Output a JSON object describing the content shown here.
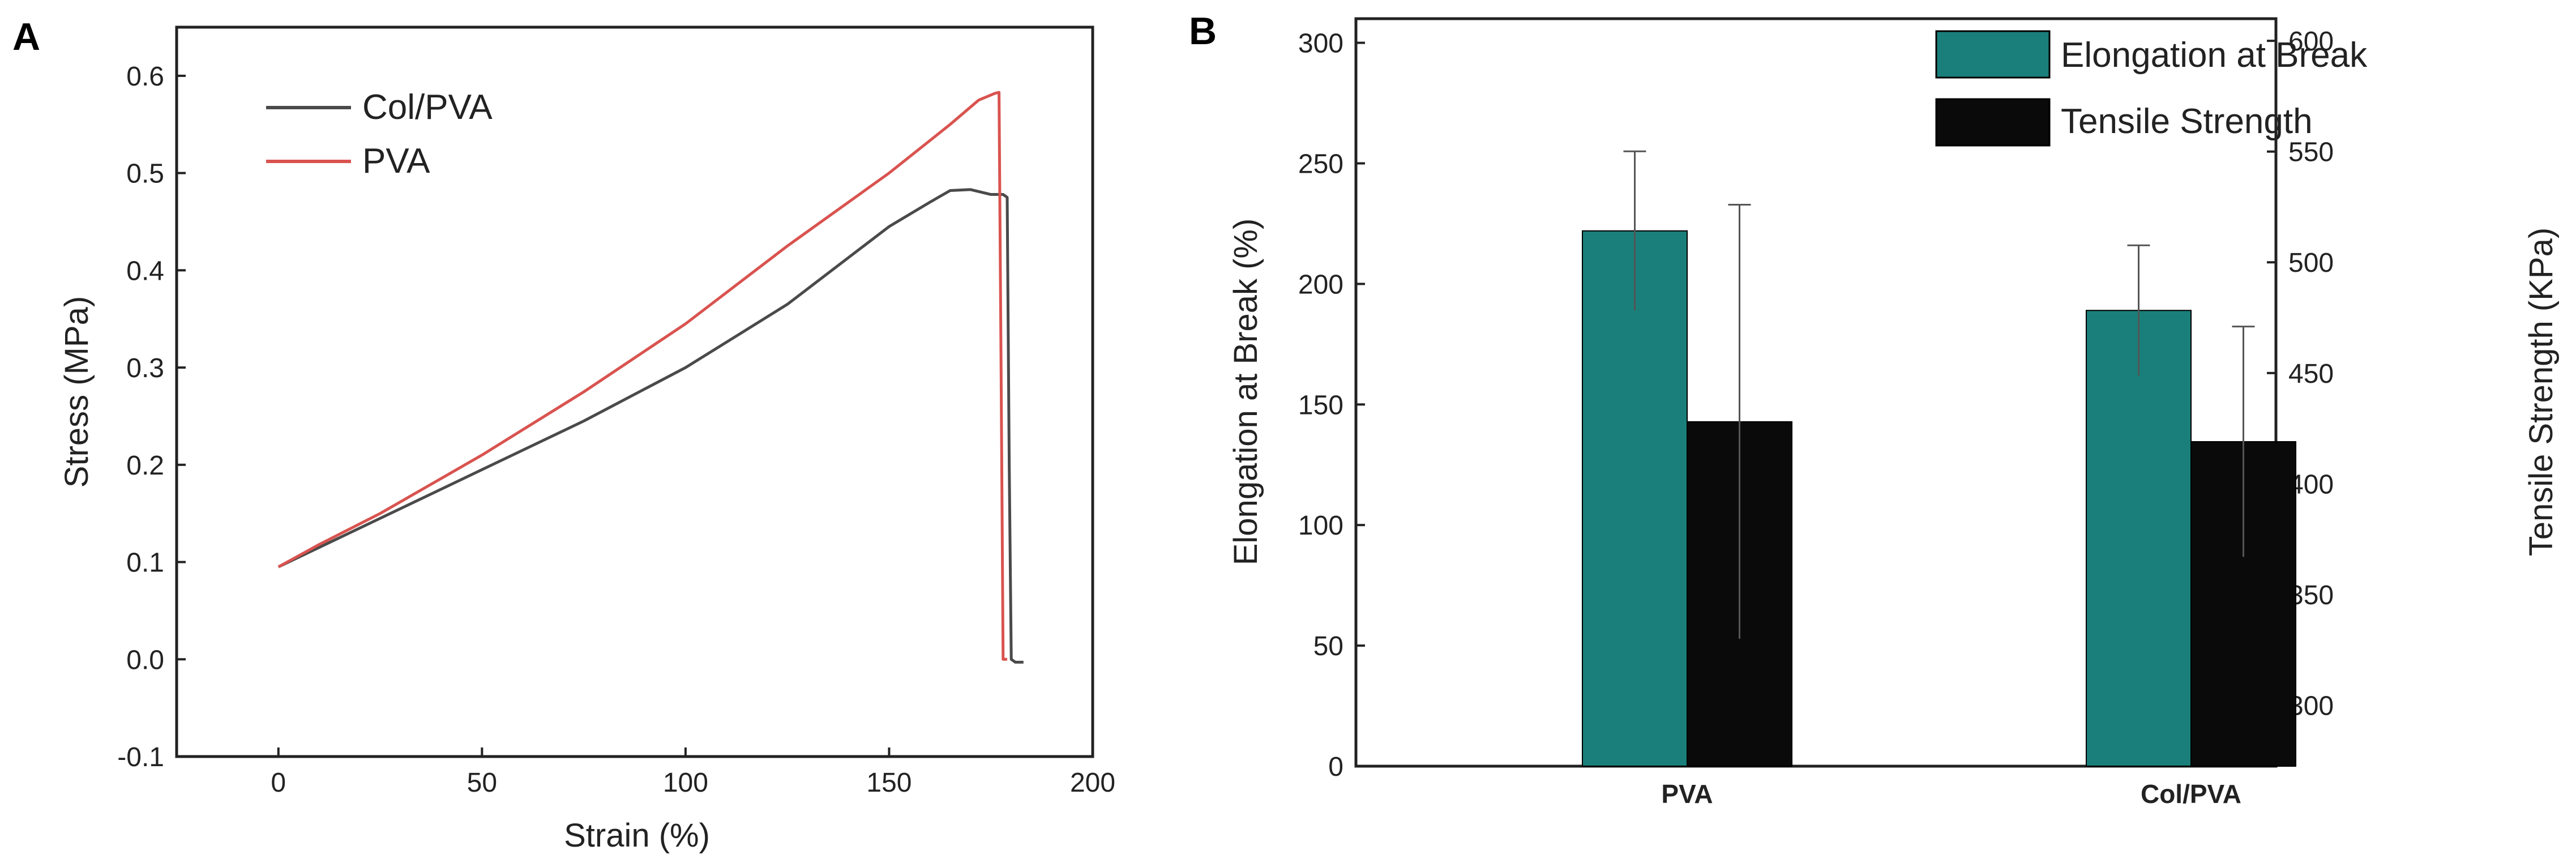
{
  "panels": {
    "a": "A",
    "b": "B"
  },
  "colors": {
    "col_pva": "#4a4a4a",
    "pva": "#d9534f",
    "elongation": "#1a7f7a",
    "tensile": "#0a0a0a"
  },
  "chart_data": [
    {
      "type": "line",
      "title": "",
      "xlabel": "Strain (%)",
      "ylabel": "Stress (MPa)",
      "xlim": [
        -25,
        200
      ],
      "ylim": [
        -0.1,
        0.65
      ],
      "xticks": [
        0,
        50,
        100,
        150,
        200
      ],
      "xtick_labels": [
        "0",
        "50",
        "100",
        "150",
        "200"
      ],
      "yticks": [
        -0.1,
        0.0,
        0.1,
        0.2,
        0.3,
        0.4,
        0.5,
        0.6
      ],
      "ytick_labels": [
        "-0.1",
        "0.0",
        "0.1",
        "0.2",
        "0.3",
        "0.4",
        "0.5",
        "0.6"
      ],
      "legend": "top-left",
      "series": [
        {
          "name": "Col/PVA",
          "x": [
            0,
            10,
            25,
            50,
            75,
            100,
            125,
            150,
            160,
            165,
            170,
            175,
            178,
            179,
            179.5,
            180,
            181,
            183
          ],
          "y": [
            0.095,
            0.115,
            0.145,
            0.195,
            0.245,
            0.3,
            0.365,
            0.445,
            0.47,
            0.482,
            0.483,
            0.478,
            0.478,
            0.475,
            0.2,
            0.0,
            -0.003,
            -0.003
          ]
        },
        {
          "name": "PVA",
          "x": [
            0,
            10,
            25,
            50,
            75,
            100,
            125,
            150,
            165,
            172,
            176,
            177,
            177.5,
            178,
            179
          ],
          "y": [
            0.095,
            0.118,
            0.15,
            0.21,
            0.275,
            0.345,
            0.425,
            0.5,
            0.55,
            0.575,
            0.582,
            0.583,
            0.3,
            0.0,
            0.0
          ]
        }
      ]
    },
    {
      "type": "bar",
      "title": "",
      "categories": [
        "PVA",
        "Col/PVA"
      ],
      "ylabel": "Elongation at Break (%)",
      "y2label": "Tensile Strength (KPa)",
      "ylim": [
        0,
        310
      ],
      "y2lim": [
        272.5,
        610
      ],
      "yticks": [
        0,
        50,
        100,
        150,
        200,
        250,
        300
      ],
      "ytick_labels": [
        "0",
        "50",
        "100",
        "150",
        "200",
        "250",
        "300"
      ],
      "y2ticks": [
        300,
        350,
        400,
        450,
        500,
        550,
        600
      ],
      "y2tick_labels": [
        "300",
        "350",
        "400",
        "450",
        "500",
        "550",
        "600"
      ],
      "legend": "top-right",
      "series": [
        {
          "name": "Elongation at Break",
          "axis": "left",
          "values": [
            222,
            189
          ],
          "errors": [
            33,
            27
          ]
        },
        {
          "name": "Tensile Strength",
          "axis": "right",
          "values": [
            428,
            419
          ],
          "errors": [
            98,
            52
          ]
        }
      ]
    }
  ]
}
